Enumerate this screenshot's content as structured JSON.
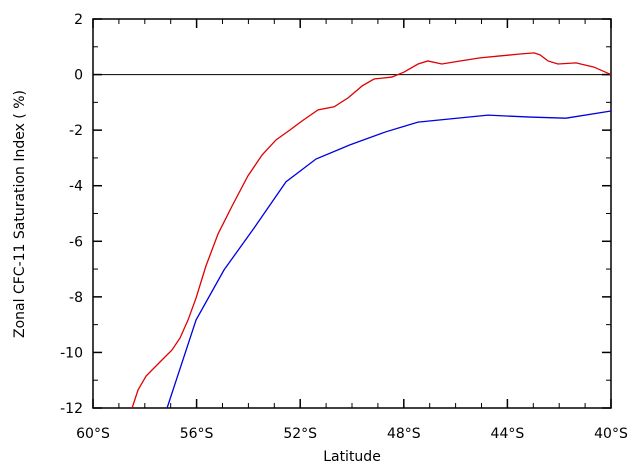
{
  "chart_data": {
    "type": "line",
    "xlabel": "Latitude",
    "ylabel": "Zonal CFC-11 Saturation Index ( %)",
    "xlim": [
      -60,
      -40
    ],
    "xticks": [
      {
        "value": -60,
        "label": "60°S"
      },
      {
        "value": -56,
        "label": "56°S"
      },
      {
        "value": -52,
        "label": "52°S"
      },
      {
        "value": -48,
        "label": "48°S"
      },
      {
        "value": -44,
        "label": "44°S"
      },
      {
        "value": -40,
        "label": "40°S"
      }
    ],
    "xminorticks": [
      -59,
      -58,
      -57,
      -55,
      -54,
      -53,
      -51,
      -50,
      -49,
      -47,
      -46,
      -45,
      -43,
      -42,
      -41
    ],
    "ylim": [
      -12,
      2
    ],
    "yticks": [
      -12,
      -10,
      -8,
      -6,
      -4,
      -2,
      0,
      2
    ],
    "yminorticks": [
      -11,
      -9,
      -7,
      -5,
      -3,
      -1,
      1
    ],
    "hline": 0,
    "series": [
      {
        "color": "#e00000",
        "x": [
          -58.49,
          -58.26,
          -57.95,
          -57.41,
          -56.95,
          -56.64,
          -56.33,
          -56.02,
          -55.64,
          -55.17,
          -54.63,
          -54.02,
          -53.47,
          -52.93,
          -52.39,
          -51.93,
          -51.31,
          -50.69,
          -50.15,
          -49.61,
          -49.15,
          -48.46,
          -47.99,
          -47.45,
          -47.07,
          -46.53,
          -45.83,
          -45.06,
          -44.29,
          -43.51,
          -42.97,
          -42.74,
          -42.43,
          -42.05,
          -41.35,
          -40.66,
          -40
        ],
        "values": [
          -12,
          -11.35,
          -10.85,
          -10.34,
          -9.91,
          -9.48,
          -8.83,
          -8.04,
          -6.89,
          -5.73,
          -4.73,
          -3.65,
          -2.89,
          -2.35,
          -1.99,
          -1.67,
          -1.27,
          -1.16,
          -0.84,
          -0.41,
          -0.16,
          -0.09,
          0.09,
          0.38,
          0.49,
          0.38,
          0.49,
          0.6,
          0.67,
          0.74,
          0.78,
          0.71,
          0.49,
          0.38,
          0.42,
          0.27,
          0
        ]
      },
      {
        "color": "#0000e0",
        "x": [
          -57.14,
          -56.02,
          -54.94,
          -53.78,
          -52.55,
          -51.39,
          -50.08,
          -48.69,
          -47.45,
          -44.75,
          -43.13,
          -41.74,
          -40
        ],
        "values": [
          -12,
          -8.83,
          -7.03,
          -5.52,
          -3.86,
          -3.04,
          -2.53,
          -2.06,
          -1.71,
          -1.46,
          -1.53,
          -1.57,
          -1.31
        ]
      }
    ]
  }
}
